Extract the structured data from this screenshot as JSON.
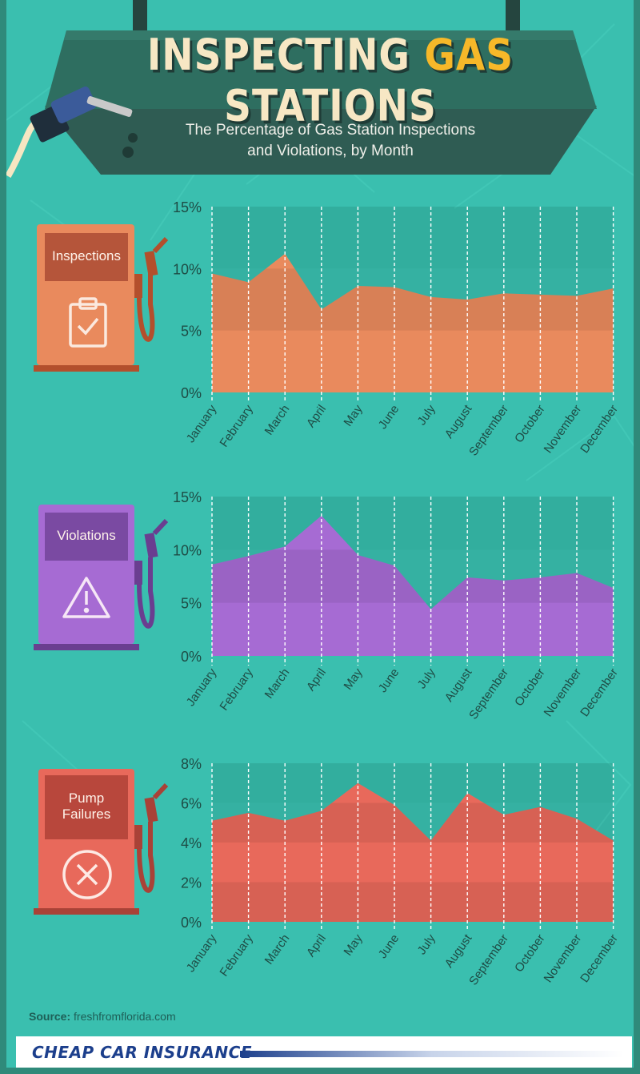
{
  "header": {
    "title_part1": "INSPECTING ",
    "title_highlight": "GAS",
    "title_part2": " STATIONS",
    "subtitle_line1": "The Percentage of Gas Station Inspections",
    "subtitle_line2": "and Violations, by Month"
  },
  "colors": {
    "background": "#3abfaf",
    "banner": "#2e6e60",
    "title": "#f7e7c4",
    "title_highlight": "#f6b829",
    "inspections": "#e98a5d",
    "violations": "#a66bd3",
    "pump_failures": "#e8695b"
  },
  "pumps": [
    {
      "label": "Inspections",
      "icon": "clipboard-check-icon"
    },
    {
      "label": "Violations",
      "icon": "warning-triangle-icon"
    },
    {
      "label": "Pump\nFailures",
      "icon": "circle-x-icon"
    }
  ],
  "chart_data": [
    {
      "type": "area",
      "series": [
        {
          "name": "Inspections",
          "values": [
            9.6,
            8.9,
            11.2,
            6.7,
            8.6,
            8.5,
            7.7,
            7.5,
            8.0,
            7.9,
            7.8,
            8.4
          ]
        }
      ],
      "categories": [
        "January",
        "February",
        "March",
        "April",
        "May",
        "June",
        "July",
        "August",
        "September",
        "October",
        "November",
        "December"
      ],
      "ylim": [
        0,
        15
      ],
      "yticks": [
        "0%",
        "5%",
        "10%",
        "15%"
      ],
      "grid": true
    },
    {
      "type": "area",
      "series": [
        {
          "name": "Violations",
          "values": [
            8.6,
            9.4,
            10.3,
            13.2,
            9.5,
            8.5,
            4.4,
            7.4,
            7.1,
            7.4,
            7.8,
            6.4
          ]
        }
      ],
      "categories": [
        "January",
        "February",
        "March",
        "April",
        "May",
        "June",
        "July",
        "August",
        "September",
        "October",
        "November",
        "December"
      ],
      "ylim": [
        0,
        15
      ],
      "yticks": [
        "0%",
        "5%",
        "10%",
        "15%"
      ],
      "grid": true
    },
    {
      "type": "area",
      "series": [
        {
          "name": "Pump Failures",
          "values": [
            5.1,
            5.5,
            5.1,
            5.6,
            7.0,
            5.9,
            4.1,
            6.5,
            5.4,
            5.8,
            5.2,
            4.1
          ]
        }
      ],
      "categories": [
        "January",
        "February",
        "March",
        "April",
        "May",
        "June",
        "July",
        "August",
        "September",
        "October",
        "November",
        "December"
      ],
      "ylim": [
        0,
        8
      ],
      "yticks": [
        "0%",
        "2%",
        "4%",
        "6%",
        "8%"
      ],
      "grid": true
    }
  ],
  "footer": {
    "source_label": "Source:",
    "source_value": "freshfromflorida.com",
    "brand": "CHEAP CAR INSURANCE"
  }
}
